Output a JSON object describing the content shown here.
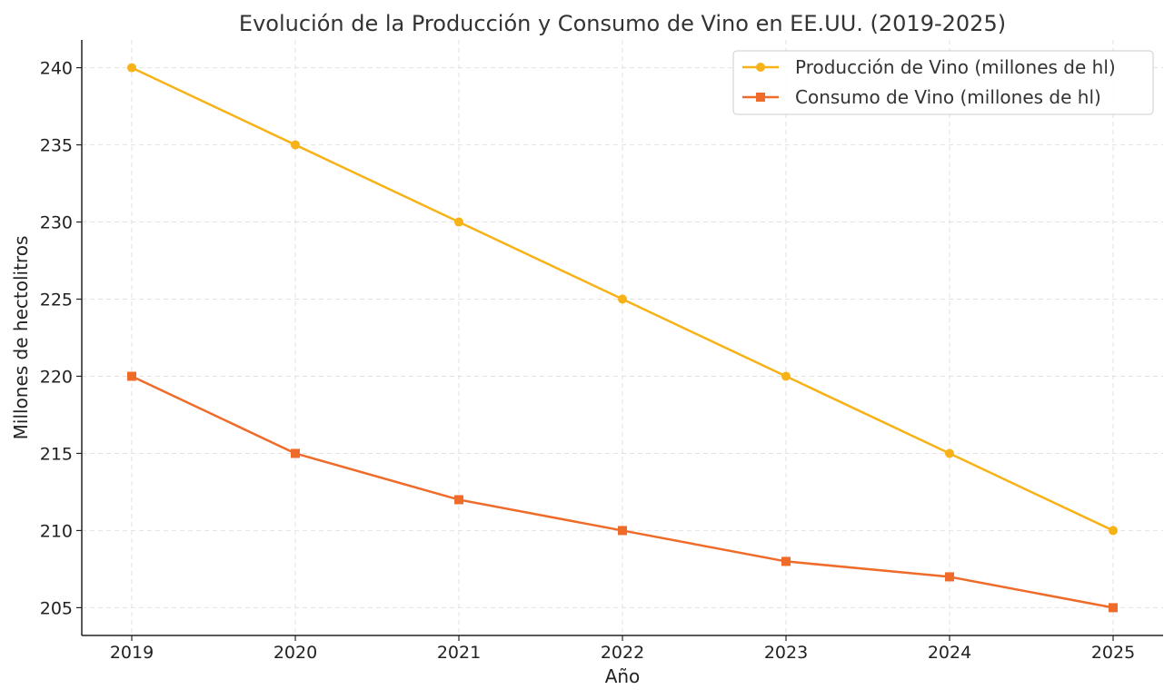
{
  "chart_data": {
    "type": "line",
    "title": "Evolución de la Producción y Consumo de Vino en EE.UU. (2019-2025)",
    "xlabel": "Año",
    "ylabel": "Millones de hectolitros",
    "categories": [
      "2019",
      "2020",
      "2021",
      "2022",
      "2023",
      "2024",
      "2025"
    ],
    "ylim": [
      203.2,
      241.8
    ],
    "yticks": [
      205,
      210,
      215,
      220,
      225,
      230,
      235,
      240
    ],
    "grid": true,
    "legend_position": "top-right",
    "series": [
      {
        "name": "Producción de Vino (millones de hl)",
        "values": [
          240,
          235,
          230,
          225,
          220,
          215,
          210
        ],
        "color": "#f7b217",
        "marker": "circle"
      },
      {
        "name": "Consumo de Vino (millones de hl)",
        "values": [
          220,
          215,
          212,
          210,
          208,
          207,
          205
        ],
        "color": "#ef6b2a",
        "marker": "square"
      }
    ]
  }
}
